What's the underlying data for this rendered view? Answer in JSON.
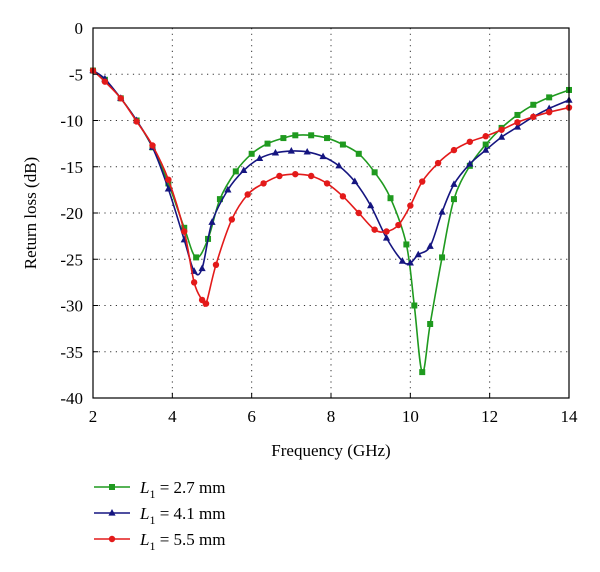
{
  "chart_data": {
    "type": "line",
    "title": "",
    "xlabel": "Frequency (GHz)",
    "ylabel": "Return loss (dB)",
    "xlim": [
      2,
      14
    ],
    "ylim": [
      -40,
      0
    ],
    "x_ticks": [
      2,
      4,
      6,
      8,
      10,
      12,
      14
    ],
    "y_ticks": [
      0,
      -5,
      -10,
      -15,
      -20,
      -25,
      -30,
      -35,
      -40
    ],
    "grid": true,
    "legend_position": "bottom-left, below plot",
    "series": [
      {
        "name": "L1 = 2.7 mm",
        "legend": {
          "var": "L",
          "sub": "1",
          "value": " = 2.7 mm"
        },
        "color": "#1f9a1f",
        "marker": "square",
        "x": [
          2,
          2.3,
          2.7,
          3.1,
          3.5,
          3.9,
          4.3,
          4.6,
          4.9,
          5.2,
          5.6,
          6.0,
          6.4,
          6.8,
          7.1,
          7.5,
          7.9,
          8.3,
          8.7,
          9.1,
          9.5,
          9.9,
          10.1,
          10.3,
          10.5,
          10.8,
          11.1,
          11.5,
          11.9,
          12.3,
          12.7,
          13.1,
          13.5,
          14
        ],
        "y": [
          -4.6,
          -5.6,
          -7.6,
          -10.0,
          -12.9,
          -16.8,
          -21.6,
          -24.8,
          -22.8,
          -18.5,
          -15.5,
          -13.6,
          -12.5,
          -11.9,
          -11.6,
          -11.6,
          -11.9,
          -12.6,
          -13.6,
          -15.6,
          -18.4,
          -23.4,
          -30.0,
          -37.2,
          -32.0,
          -24.8,
          -18.5,
          -14.9,
          -12.6,
          -10.8,
          -9.4,
          -8.3,
          -7.5,
          -6.7
        ]
      },
      {
        "name": "L1 = 4.1 mm",
        "legend": {
          "var": "L",
          "sub": "1",
          "value": " = 4.1 mm"
        },
        "color": "#151580",
        "marker": "triangle",
        "x": [
          2,
          2.3,
          2.7,
          3.1,
          3.5,
          3.9,
          4.3,
          4.55,
          4.75,
          5.0,
          5.4,
          5.8,
          6.2,
          6.6,
          7.0,
          7.4,
          7.8,
          8.2,
          8.6,
          9.0,
          9.4,
          9.8,
          10.0,
          10.2,
          10.5,
          10.8,
          11.1,
          11.5,
          11.9,
          12.3,
          12.7,
          13.1,
          13.5,
          14
        ],
        "y": [
          -4.6,
          -5.5,
          -7.6,
          -10.0,
          -12.9,
          -17.4,
          -22.9,
          -26.3,
          -26.0,
          -21.0,
          -17.5,
          -15.4,
          -14.1,
          -13.5,
          -13.3,
          -13.4,
          -13.9,
          -14.9,
          -16.6,
          -19.2,
          -22.7,
          -25.2,
          -25.4,
          -24.5,
          -23.6,
          -19.9,
          -16.9,
          -14.7,
          -13.2,
          -11.8,
          -10.7,
          -9.6,
          -8.7,
          -7.8
        ]
      },
      {
        "name": "L1 = 5.5 mm",
        "legend": {
          "var": "L",
          "sub": "1",
          "value": " = 5.5 mm"
        },
        "color": "#e31a1a",
        "marker": "circle",
        "x": [
          2,
          2.3,
          2.7,
          3.1,
          3.5,
          3.9,
          4.3,
          4.55,
          4.75,
          4.85,
          5.1,
          5.5,
          5.9,
          6.3,
          6.7,
          7.1,
          7.5,
          7.9,
          8.3,
          8.7,
          9.1,
          9.4,
          9.7,
          10.0,
          10.3,
          10.7,
          11.1,
          11.5,
          11.9,
          12.3,
          12.7,
          13.1,
          13.5,
          14
        ],
        "y": [
          -4.6,
          -5.8,
          -7.6,
          -10.1,
          -12.7,
          -16.4,
          -22.0,
          -27.5,
          -29.4,
          -29.8,
          -25.6,
          -20.7,
          -18.0,
          -16.8,
          -16.0,
          -15.8,
          -16.0,
          -16.8,
          -18.2,
          -20.0,
          -21.8,
          -22.0,
          -21.3,
          -19.2,
          -16.6,
          -14.6,
          -13.2,
          -12.3,
          -11.7,
          -11.0,
          -10.2,
          -9.6,
          -9.1,
          -8.6
        ]
      }
    ]
  }
}
